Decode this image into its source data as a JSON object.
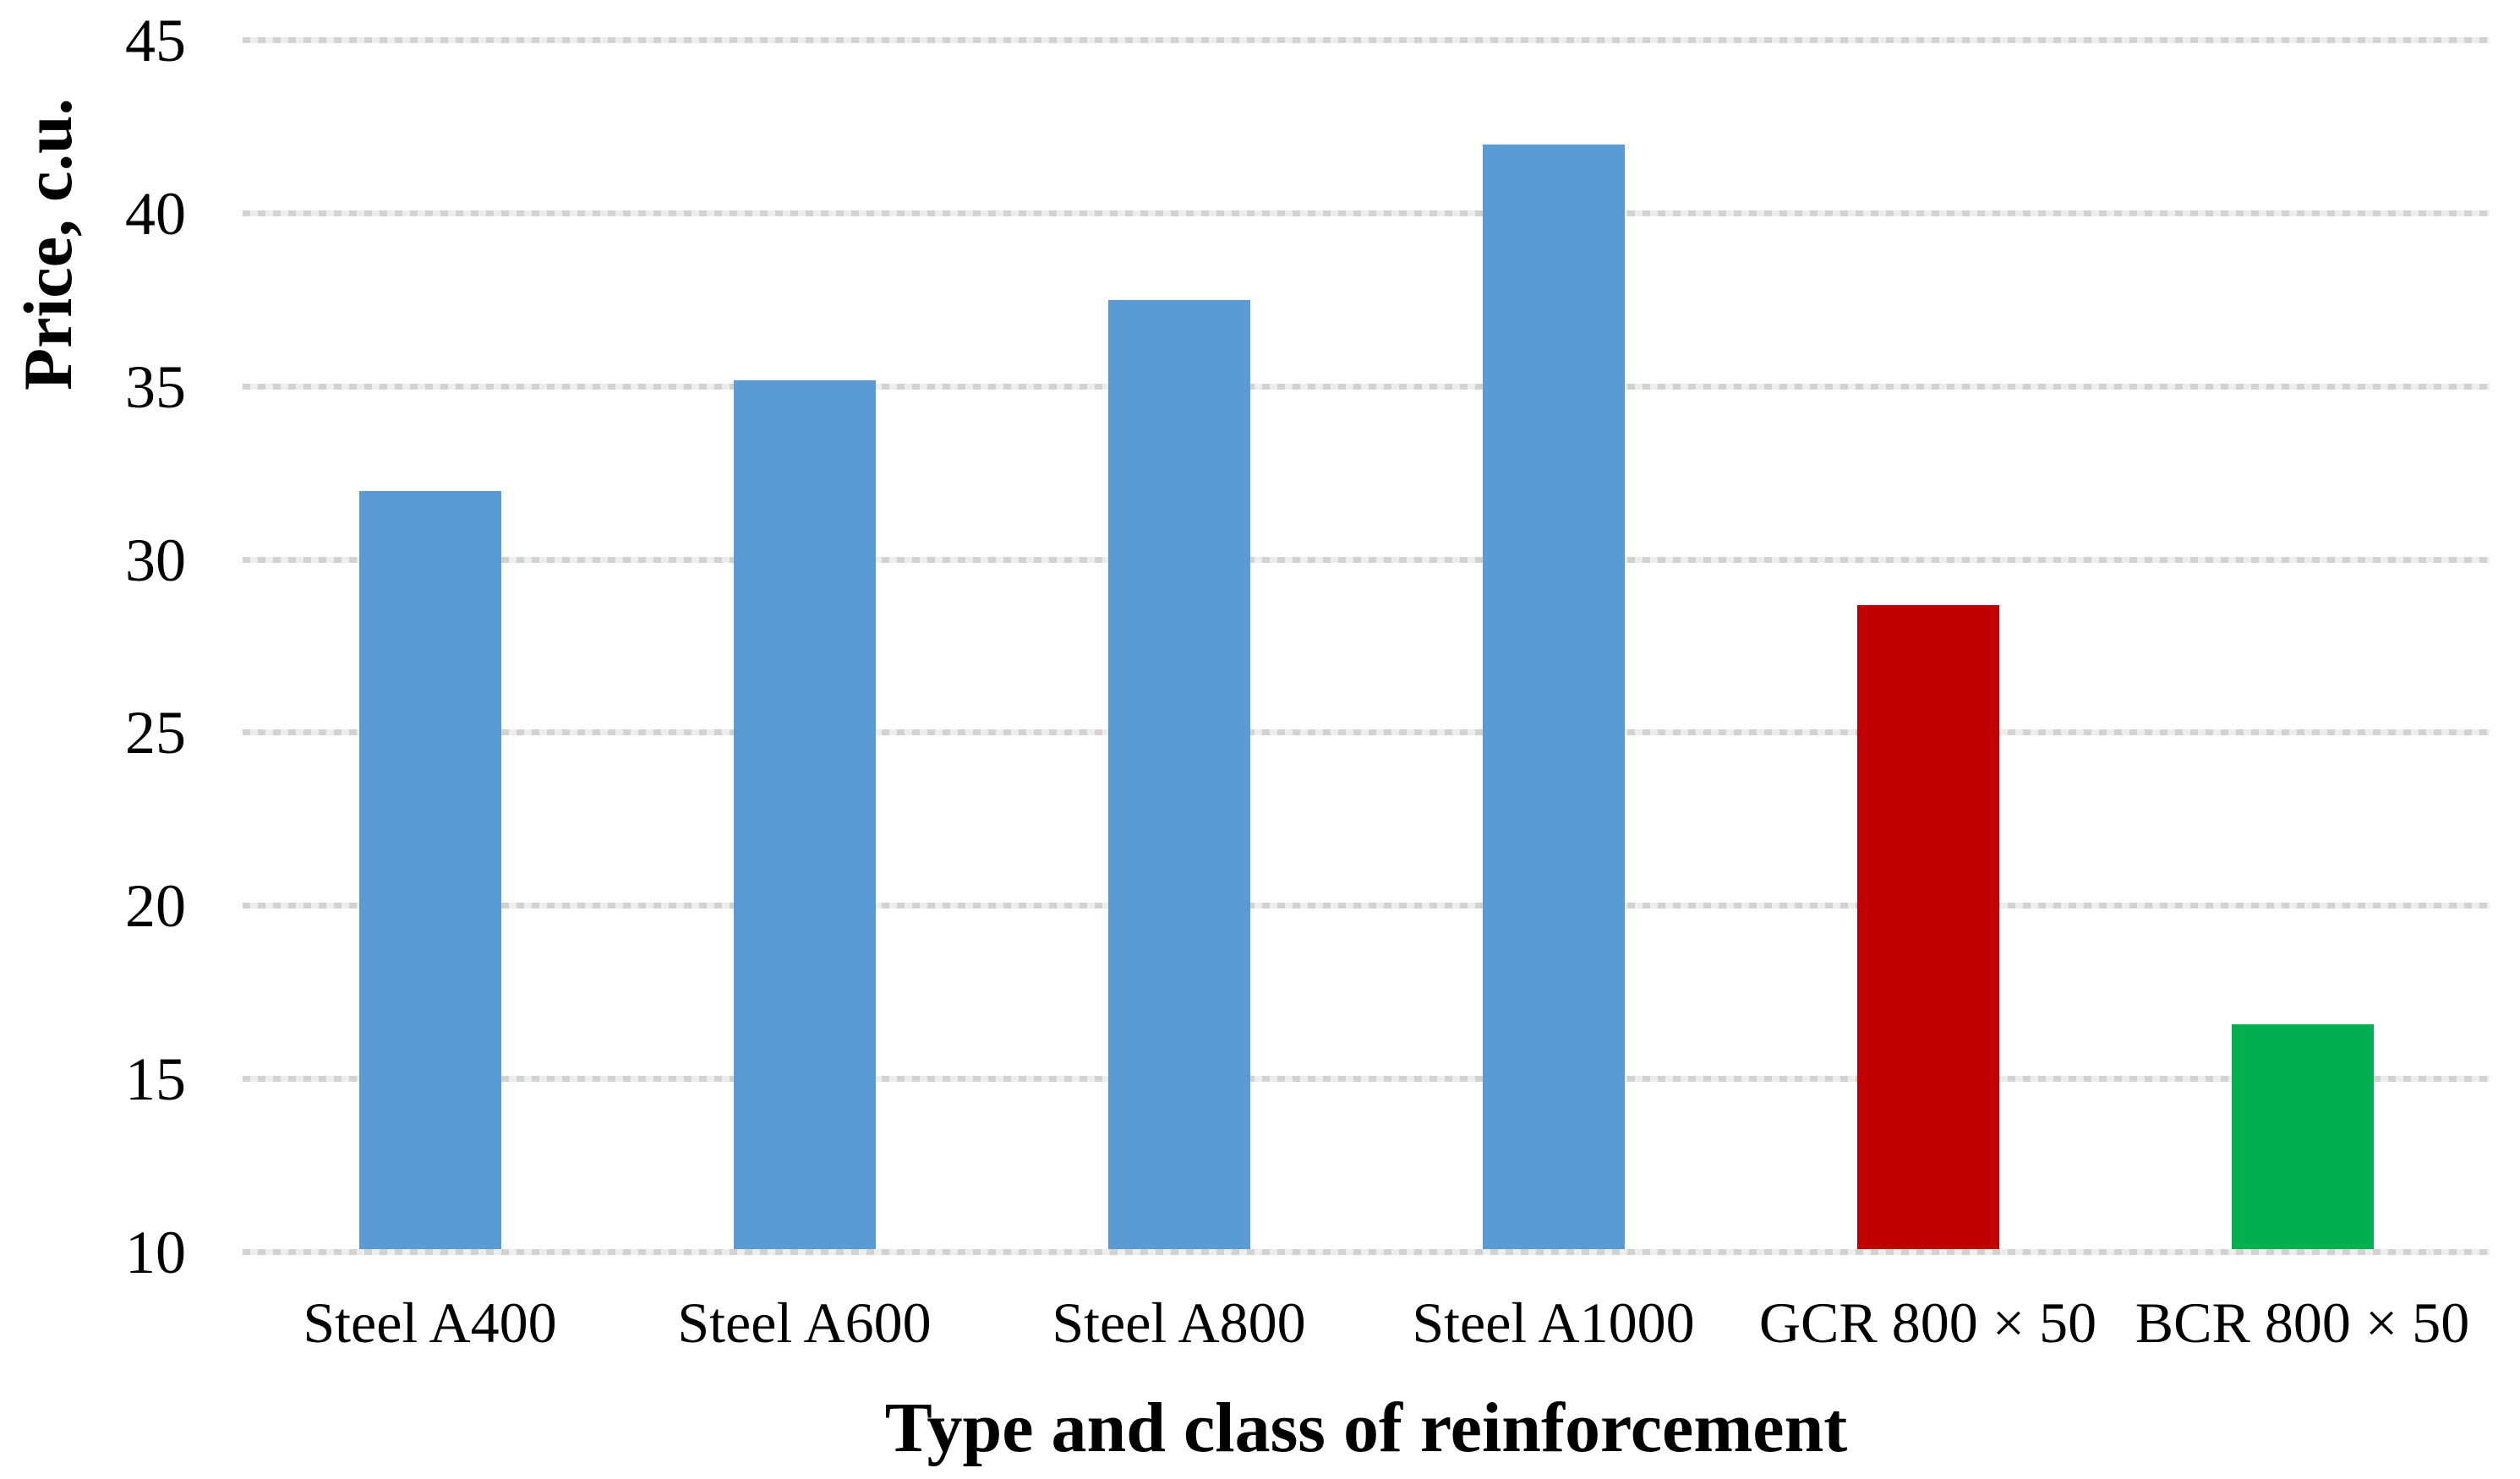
{
  "chart_data": {
    "type": "bar",
    "title": "",
    "xlabel": "Type and class of reinforcement",
    "ylabel": "Price, c.u.",
    "categories": [
      "Steel A400",
      "Steel A600",
      "Steel A800",
      "Steel A1000",
      "GCR 800 × 50",
      "BCR 800 × 50"
    ],
    "values": [
      31.9,
      35.1,
      37.4,
      41.9,
      28.6,
      16.5
    ],
    "series": [
      {
        "name": "Price",
        "values": [
          31.9,
          35.1,
          37.4,
          41.9,
          28.6,
          16.5
        ]
      }
    ],
    "bar_colors": [
      "#5B9BD5",
      "#5B9BD5",
      "#5B9BD5",
      "#5B9BD5",
      "#C00000",
      "#00B050"
    ],
    "yticks": [
      10,
      15,
      20,
      25,
      30,
      35,
      40,
      45
    ],
    "ylim": [
      10,
      45
    ],
    "grid": "horizontal-dashed",
    "legend_position": "none",
    "colors": {
      "steel_blue": "#5B9BD5",
      "gcr_red": "#C00000",
      "bcr_green": "#00B050",
      "grid": "#D9D9D9",
      "text": "#000000",
      "background": "#FFFFFF"
    }
  }
}
